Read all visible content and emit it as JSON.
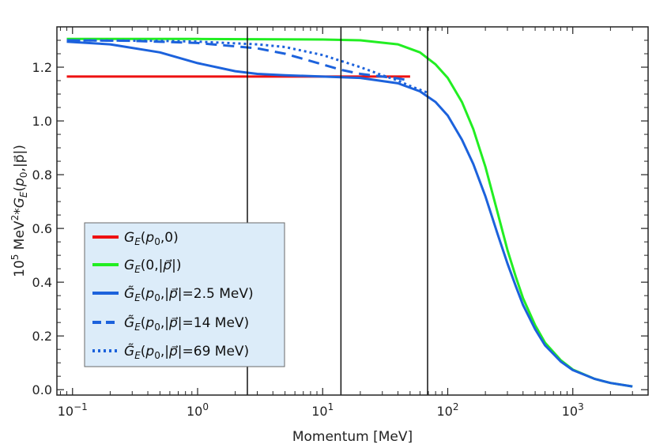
{
  "chart_data": {
    "type": "line",
    "xlabel": "Momentum [MeV]",
    "ylabel": "10^5 MeV^2 * G_E(p_0,|p|)",
    "x_scale": "log",
    "xlim": [
      0.075,
      4000
    ],
    "ylim": [
      -0.02,
      1.35
    ],
    "x_ticks": [
      {
        "value": 0.1,
        "base": "10",
        "exp": "−1"
      },
      {
        "value": 1,
        "base": "10",
        "exp": "0"
      },
      {
        "value": 10,
        "base": "10",
        "exp": "1"
      },
      {
        "value": 100,
        "base": "10",
        "exp": "2"
      },
      {
        "value": 1000,
        "base": "10",
        "exp": "3"
      }
    ],
    "y_ticks": [
      {
        "value": 0.0,
        "label": "0.0"
      },
      {
        "value": 0.2,
        "label": "0.2"
      },
      {
        "value": 0.4,
        "label": "0.4"
      },
      {
        "value": 0.6,
        "label": "0.6"
      },
      {
        "value": 0.8,
        "label": "0.8"
      },
      {
        "value": 1.0,
        "label": "1.0"
      },
      {
        "value": 1.2,
        "label": "1.2"
      }
    ],
    "vertical_lines": [
      2.5,
      14,
      69
    ],
    "legend_position": "lower-left",
    "series": [
      {
        "name": "G_E(p_0,0)",
        "color": "#ee1111",
        "dash": "solid",
        "x": [
          0.09,
          10,
          50
        ],
        "y": [
          1.165,
          1.165,
          1.165
        ]
      },
      {
        "name": "G_E(0,|p|)",
        "color": "#22ee22",
        "dash": "solid",
        "x": [
          0.09,
          1,
          10,
          20,
          40,
          60,
          80,
          100,
          130,
          160,
          200,
          250,
          300,
          350,
          400,
          500,
          600,
          800,
          1000,
          1500,
          2000,
          3000
        ],
        "y": [
          1.305,
          1.305,
          1.303,
          1.3,
          1.285,
          1.255,
          1.21,
          1.16,
          1.07,
          0.97,
          0.83,
          0.66,
          0.52,
          0.42,
          0.34,
          0.24,
          0.175,
          0.11,
          0.075,
          0.04,
          0.025,
          0.012
        ]
      },
      {
        "name": "G̃_E(p_0,|p|=2.5 MeV)",
        "color": "#1c62dc",
        "dash": "solid",
        "x": [
          0.09,
          0.2,
          0.5,
          1,
          2,
          3,
          5,
          10,
          20,
          40,
          60,
          80,
          100,
          130,
          160,
          200,
          250,
          300,
          350,
          400,
          500,
          600,
          800,
          1000,
          1500,
          2000,
          3000
        ],
        "y": [
          1.295,
          1.285,
          1.255,
          1.215,
          1.185,
          1.175,
          1.17,
          1.165,
          1.16,
          1.14,
          1.11,
          1.07,
          1.02,
          0.93,
          0.84,
          0.72,
          0.58,
          0.47,
          0.385,
          0.315,
          0.225,
          0.165,
          0.105,
          0.073,
          0.04,
          0.025,
          0.012
        ]
      },
      {
        "name": "G̃_E(p_0,|p|=14 MeV)",
        "color": "#1c62dc",
        "dash": "dashed",
        "x": [
          0.09,
          0.3,
          1,
          3,
          5,
          10,
          14,
          20,
          30,
          40,
          50
        ],
        "y": [
          1.3,
          1.298,
          1.29,
          1.27,
          1.25,
          1.21,
          1.19,
          1.175,
          1.165,
          1.158,
          1.15
        ]
      },
      {
        "name": "G̃_E(p_0,|p|=69 MeV)",
        "color": "#1c62dc",
        "dash": "dotted",
        "x": [
          0.09,
          0.5,
          1,
          3,
          5,
          10,
          20,
          30,
          40,
          50,
          69
        ],
        "y": [
          1.3,
          1.298,
          1.295,
          1.285,
          1.275,
          1.245,
          1.2,
          1.17,
          1.15,
          1.13,
          1.105
        ]
      }
    ]
  }
}
